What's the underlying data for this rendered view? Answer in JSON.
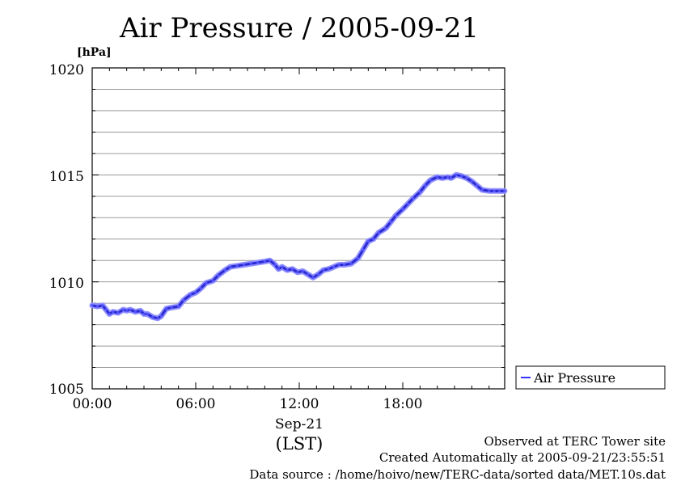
{
  "chart_data": {
    "type": "line",
    "title": "Air Pressure / 2005-09-21",
    "ylabel": "[hPa]",
    "xlabel": "Sep-21",
    "xlabel2": "(LST)",
    "ylim": [
      1005,
      1020
    ],
    "xlim_hours": [
      0,
      23.9
    ],
    "y_ticks": [
      "1005",
      "1010",
      "1015",
      "1020"
    ],
    "x_ticks": [
      "00:00",
      "06:00",
      "12:00",
      "18:00"
    ],
    "grid": true,
    "legend_position": "right",
    "series": [
      {
        "name": "Air Pressure",
        "color": "#3333ff",
        "x": [
          0,
          0.3,
          0.6,
          0.8,
          1.0,
          1.2,
          1.5,
          1.8,
          2.0,
          2.2,
          2.5,
          2.8,
          3.0,
          3.2,
          3.5,
          3.8,
          4.0,
          4.3,
          4.6,
          5.0,
          5.3,
          5.7,
          6.0,
          6.3,
          6.6,
          7.0,
          7.3,
          7.7,
          8.0,
          8.4,
          8.8,
          9.2,
          9.6,
          10.0,
          10.3,
          10.6,
          10.8,
          11.0,
          11.3,
          11.6,
          11.9,
          12.2,
          12.5,
          12.8,
          13.1,
          13.4,
          13.7,
          14.0,
          14.3,
          14.6,
          15.0,
          15.4,
          15.7,
          16.0,
          16.3,
          16.6,
          17.0,
          17.3,
          17.6,
          18.0,
          18.3,
          18.6,
          19.0,
          19.3,
          19.6,
          20.0,
          20.3,
          20.6,
          20.8,
          21.1,
          21.4,
          21.7,
          22.0,
          22.3,
          22.6,
          23.0,
          23.3,
          23.6,
          23.9
        ],
        "values": [
          1008.9,
          1008.85,
          1008.9,
          1008.7,
          1008.5,
          1008.6,
          1008.55,
          1008.7,
          1008.65,
          1008.7,
          1008.6,
          1008.65,
          1008.5,
          1008.5,
          1008.35,
          1008.3,
          1008.4,
          1008.75,
          1008.8,
          1008.85,
          1009.15,
          1009.4,
          1009.5,
          1009.7,
          1009.95,
          1010.05,
          1010.3,
          1010.55,
          1010.7,
          1010.75,
          1010.8,
          1010.85,
          1010.9,
          1010.95,
          1011.0,
          1010.8,
          1010.6,
          1010.7,
          1010.55,
          1010.6,
          1010.45,
          1010.5,
          1010.35,
          1010.2,
          1010.35,
          1010.55,
          1010.6,
          1010.7,
          1010.8,
          1010.8,
          1010.85,
          1011.1,
          1011.5,
          1011.9,
          1012.0,
          1012.3,
          1012.5,
          1012.8,
          1013.1,
          1013.4,
          1013.65,
          1013.9,
          1014.2,
          1014.5,
          1014.75,
          1014.9,
          1014.85,
          1014.9,
          1014.85,
          1015.0,
          1014.95,
          1014.85,
          1014.7,
          1014.5,
          1014.3,
          1014.25,
          1014.25,
          1014.25,
          1014.25
        ]
      }
    ]
  },
  "footer": {
    "line1": "Observed at TERC Tower site",
    "line2": "Created Automatically at 2005-09-21/23:55:51",
    "line3": "Data source : /home/hoivo/new/TERC-data/sorted  data/MET.10s.dat"
  }
}
